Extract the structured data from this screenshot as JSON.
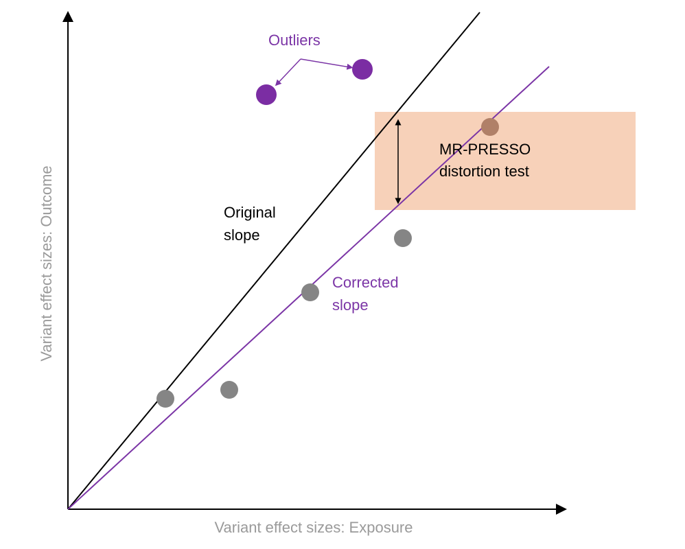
{
  "labels": {
    "y_axis": "Variant effect sizes: Outcome",
    "x_axis": "Variant effect sizes: Exposure",
    "outliers": "Outliers",
    "original_slope_line1": "Original",
    "original_slope_line2": "slope",
    "corrected_slope_line1": "Corrected",
    "corrected_slope_line2": "slope",
    "test_line1": "MR-PRESSO",
    "test_line2": "distortion test"
  },
  "colors": {
    "purple": "#7b35a6",
    "outlier": "#7b2da3",
    "gray_point": "#858585",
    "axis_label": "#9a9a9a",
    "box_fill": "#f6c9ad",
    "box_point": "#b08068",
    "black": "#000000"
  }
}
